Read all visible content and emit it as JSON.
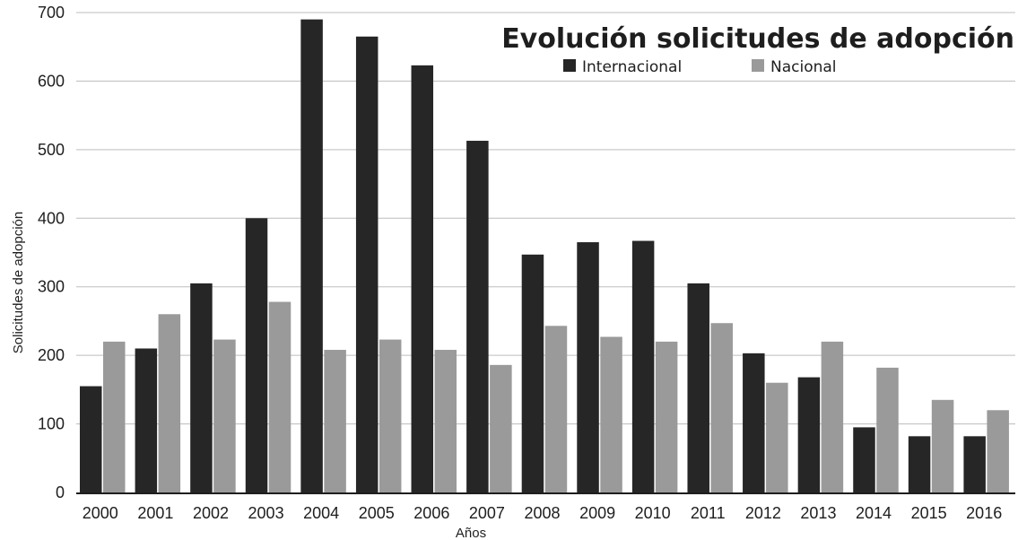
{
  "chart_data": {
    "type": "bar",
    "title": "Evolución solicitudes de adopción",
    "xlabel": "Años",
    "ylabel": "Solicitudes de adopción",
    "ylim": [
      0,
      700
    ],
    "yticks": [
      0,
      100,
      200,
      300,
      400,
      500,
      600,
      700
    ],
    "grid": true,
    "legend_position": "top-right",
    "categories": [
      "2000",
      "2001",
      "2002",
      "2003",
      "2004",
      "2005",
      "2006",
      "2007",
      "2008",
      "2009",
      "2010",
      "2011",
      "2012",
      "2013",
      "2014",
      "2015",
      "2016"
    ],
    "series": [
      {
        "name": "Internacional",
        "color": "#262626",
        "values": [
          155,
          210,
          305,
          400,
          690,
          665,
          623,
          513,
          347,
          365,
          367,
          305,
          203,
          168,
          95,
          82,
          82
        ]
      },
      {
        "name": "Nacional",
        "color": "#9a9a9a",
        "values": [
          220,
          260,
          223,
          278,
          208,
          223,
          208,
          186,
          243,
          227,
          220,
          247,
          160,
          220,
          182,
          135,
          120
        ]
      }
    ]
  }
}
